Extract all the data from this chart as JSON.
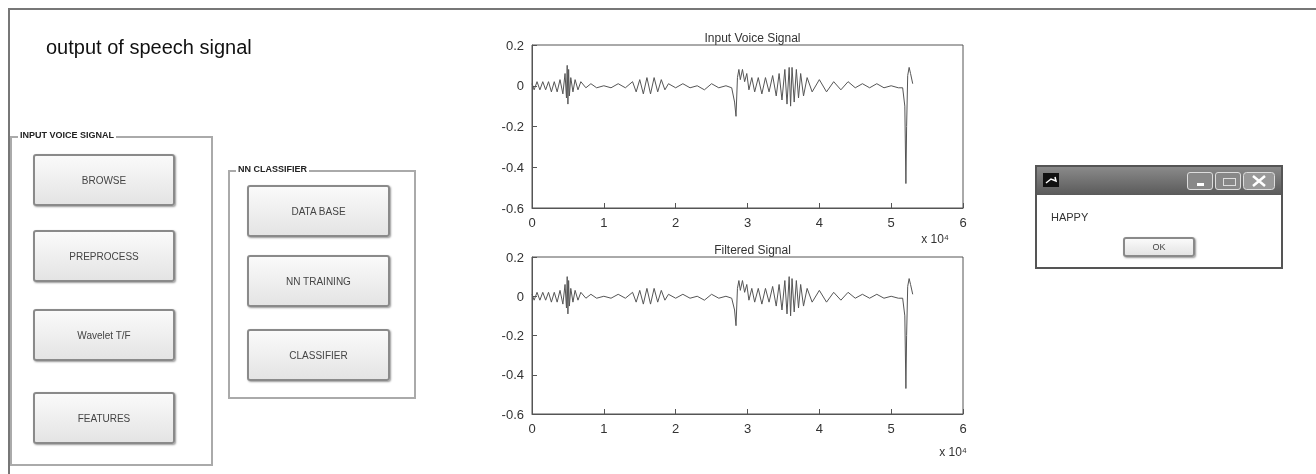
{
  "chart_data": [
    {
      "type": "other",
      "title": "output of speech signal",
      "annotations": [
        "INPUT VOICE SIGNAL",
        "BROWSE",
        "PREPROCESS",
        "Wavelet T/F",
        "FEATURES",
        "NN CLASSIFIER",
        "DATA BASE",
        "NN TRAINING",
        "CLASSIFIER"
      ]
    },
    {
      "type": "line",
      "title": "Input Voice Signal",
      "annotations": [
        "x 10⁴"
      ],
      "xlim": [
        0,
        6
      ],
      "xticks": [
        0,
        1,
        2,
        3,
        4,
        5,
        6
      ],
      "ylim": [
        -0.6,
        0.2
      ],
      "yticks": [
        0.2,
        0,
        -0.2,
        -0.4,
        -0.6
      ],
      "grid": false,
      "line_style": "solid",
      "marker": "none",
      "series": [
        {
          "color": "#555555",
          "x": [
            0,
            0.03,
            0.07,
            0.11,
            0.15,
            0.19,
            0.23,
            0.27,
            0.31,
            0.35,
            0.39,
            0.43,
            0.46,
            0.48,
            0.49,
            0.5,
            0.51,
            0.52,
            0.54,
            0.57,
            0.6,
            0.64,
            0.68,
            0.75,
            0.82,
            0.9,
            1,
            1.1,
            1.2,
            1.3,
            1.4,
            1.45,
            1.5,
            1.55,
            1.6,
            1.65,
            1.7,
            1.75,
            1.8,
            1.85,
            1.9,
            2,
            2.1,
            2.2,
            2.3,
            2.4,
            2.5,
            2.6,
            2.7,
            2.78,
            2.82,
            2.84,
            2.86,
            2.88,
            2.9,
            2.93,
            2.96,
            2.99,
            3.02,
            3.06,
            3.1,
            3.15,
            3.2,
            3.25,
            3.3,
            3.35,
            3.4,
            3.44,
            3.48,
            3.52,
            3.55,
            3.58,
            3.6,
            3.62,
            3.65,
            3.68,
            3.71,
            3.74,
            3.78,
            3.83,
            3.9,
            4,
            4.1,
            4.2,
            4.3,
            4.4,
            4.5,
            4.6,
            4.7,
            4.8,
            4.9,
            5,
            5.1,
            5.16,
            5.19,
            5.205,
            5.215,
            5.23,
            5.25,
            5.27,
            5.3
          ],
          "values": [
            0.01,
            -0.02,
            0.02,
            -0.02,
            0.02,
            -0.02,
            0.02,
            -0.03,
            0.02,
            -0.03,
            0.03,
            -0.04,
            0.06,
            -0.06,
            0.1,
            -0.09,
            0.08,
            -0.05,
            0.04,
            -0.03,
            0.03,
            -0.02,
            0.02,
            -0.01,
            0.01,
            -0.01,
            0,
            -0.01,
            0.01,
            -0.01,
            0.02,
            -0.03,
            0.03,
            -0.04,
            0.04,
            -0.04,
            0.04,
            -0.03,
            0.03,
            -0.02,
            0.01,
            -0.01,
            0.01,
            -0.01,
            0,
            -0.02,
            0.01,
            -0.01,
            0,
            -0.01,
            -0.08,
            -0.15,
            0.04,
            0.08,
            0.03,
            0.08,
            0.02,
            0.06,
            -0.02,
            0.04,
            -0.03,
            0.04,
            -0.04,
            0.04,
            -0.03,
            0.05,
            -0.05,
            0.06,
            -0.07,
            0.08,
            -0.09,
            0.09,
            -0.1,
            0.09,
            -0.08,
            0.08,
            -0.06,
            0.06,
            -0.05,
            0.04,
            -0.03,
            0.03,
            -0.03,
            0.02,
            -0.02,
            0.02,
            -0.01,
            0.01,
            -0.01,
            0.01,
            -0.01,
            0,
            -0.01,
            -0.01,
            -0.1,
            -0.48,
            -0.2,
            0.05,
            0.09,
            0.06,
            0.01
          ]
        }
      ]
    },
    {
      "type": "line",
      "title": "Filtered Signal",
      "annotations": [
        "x 10⁴"
      ],
      "xlim": [
        0,
        6
      ],
      "xticks": [
        0,
        1,
        2,
        3,
        4,
        5,
        6
      ],
      "ylim": [
        -0.6,
        0.2
      ],
      "yticks": [
        0.2,
        0,
        -0.2,
        -0.4,
        -0.6
      ],
      "grid": false,
      "line_style": "solid",
      "marker": "none",
      "series": [
        {
          "color": "#555555",
          "x": [
            0,
            0.03,
            0.07,
            0.11,
            0.15,
            0.19,
            0.23,
            0.27,
            0.31,
            0.35,
            0.39,
            0.43,
            0.46,
            0.48,
            0.49,
            0.5,
            0.51,
            0.52,
            0.54,
            0.57,
            0.6,
            0.64,
            0.68,
            0.75,
            0.82,
            0.9,
            1,
            1.1,
            1.2,
            1.3,
            1.4,
            1.45,
            1.5,
            1.55,
            1.6,
            1.65,
            1.7,
            1.75,
            1.8,
            1.85,
            1.9,
            2,
            2.1,
            2.2,
            2.3,
            2.4,
            2.5,
            2.6,
            2.7,
            2.78,
            2.82,
            2.84,
            2.86,
            2.88,
            2.9,
            2.93,
            2.96,
            2.99,
            3.02,
            3.06,
            3.1,
            3.15,
            3.2,
            3.25,
            3.3,
            3.35,
            3.4,
            3.44,
            3.48,
            3.52,
            3.55,
            3.58,
            3.6,
            3.62,
            3.65,
            3.68,
            3.71,
            3.74,
            3.78,
            3.83,
            3.9,
            4,
            4.1,
            4.2,
            4.3,
            4.4,
            4.5,
            4.6,
            4.7,
            4.8,
            4.9,
            5,
            5.1,
            5.16,
            5.19,
            5.205,
            5.215,
            5.23,
            5.25,
            5.27,
            5.3
          ],
          "values": [
            0.01,
            -0.02,
            0.02,
            -0.02,
            0.02,
            -0.02,
            0.02,
            -0.03,
            0.02,
            -0.03,
            0.03,
            -0.04,
            0.06,
            -0.06,
            0.1,
            -0.09,
            0.08,
            -0.05,
            0.04,
            -0.03,
            0.03,
            -0.02,
            0.02,
            -0.01,
            0.01,
            -0.01,
            0,
            -0.01,
            0.01,
            -0.01,
            0.02,
            -0.03,
            0.03,
            -0.04,
            0.04,
            -0.04,
            0.04,
            -0.03,
            0.03,
            -0.02,
            0.01,
            -0.01,
            0.01,
            -0.01,
            0,
            -0.02,
            0.01,
            -0.01,
            0,
            -0.01,
            -0.07,
            -0.15,
            0.04,
            0.08,
            0.03,
            0.08,
            0.02,
            0.06,
            -0.02,
            0.04,
            -0.03,
            0.04,
            -0.04,
            0.04,
            -0.03,
            0.05,
            -0.05,
            0.06,
            -0.07,
            0.08,
            -0.09,
            0.1,
            -0.1,
            0.09,
            -0.08,
            0.08,
            -0.06,
            0.06,
            -0.05,
            0.04,
            -0.03,
            0.03,
            -0.03,
            0.02,
            -0.02,
            0.02,
            -0.01,
            0.01,
            -0.01,
            0.01,
            -0.01,
            0,
            -0.01,
            -0.01,
            -0.1,
            -0.47,
            -0.2,
            0.05,
            0.09,
            0.06,
            0.01
          ]
        }
      ]
    },
    {
      "type": "other",
      "annotations": [
        "HAPPY",
        "OK"
      ]
    }
  ]
}
